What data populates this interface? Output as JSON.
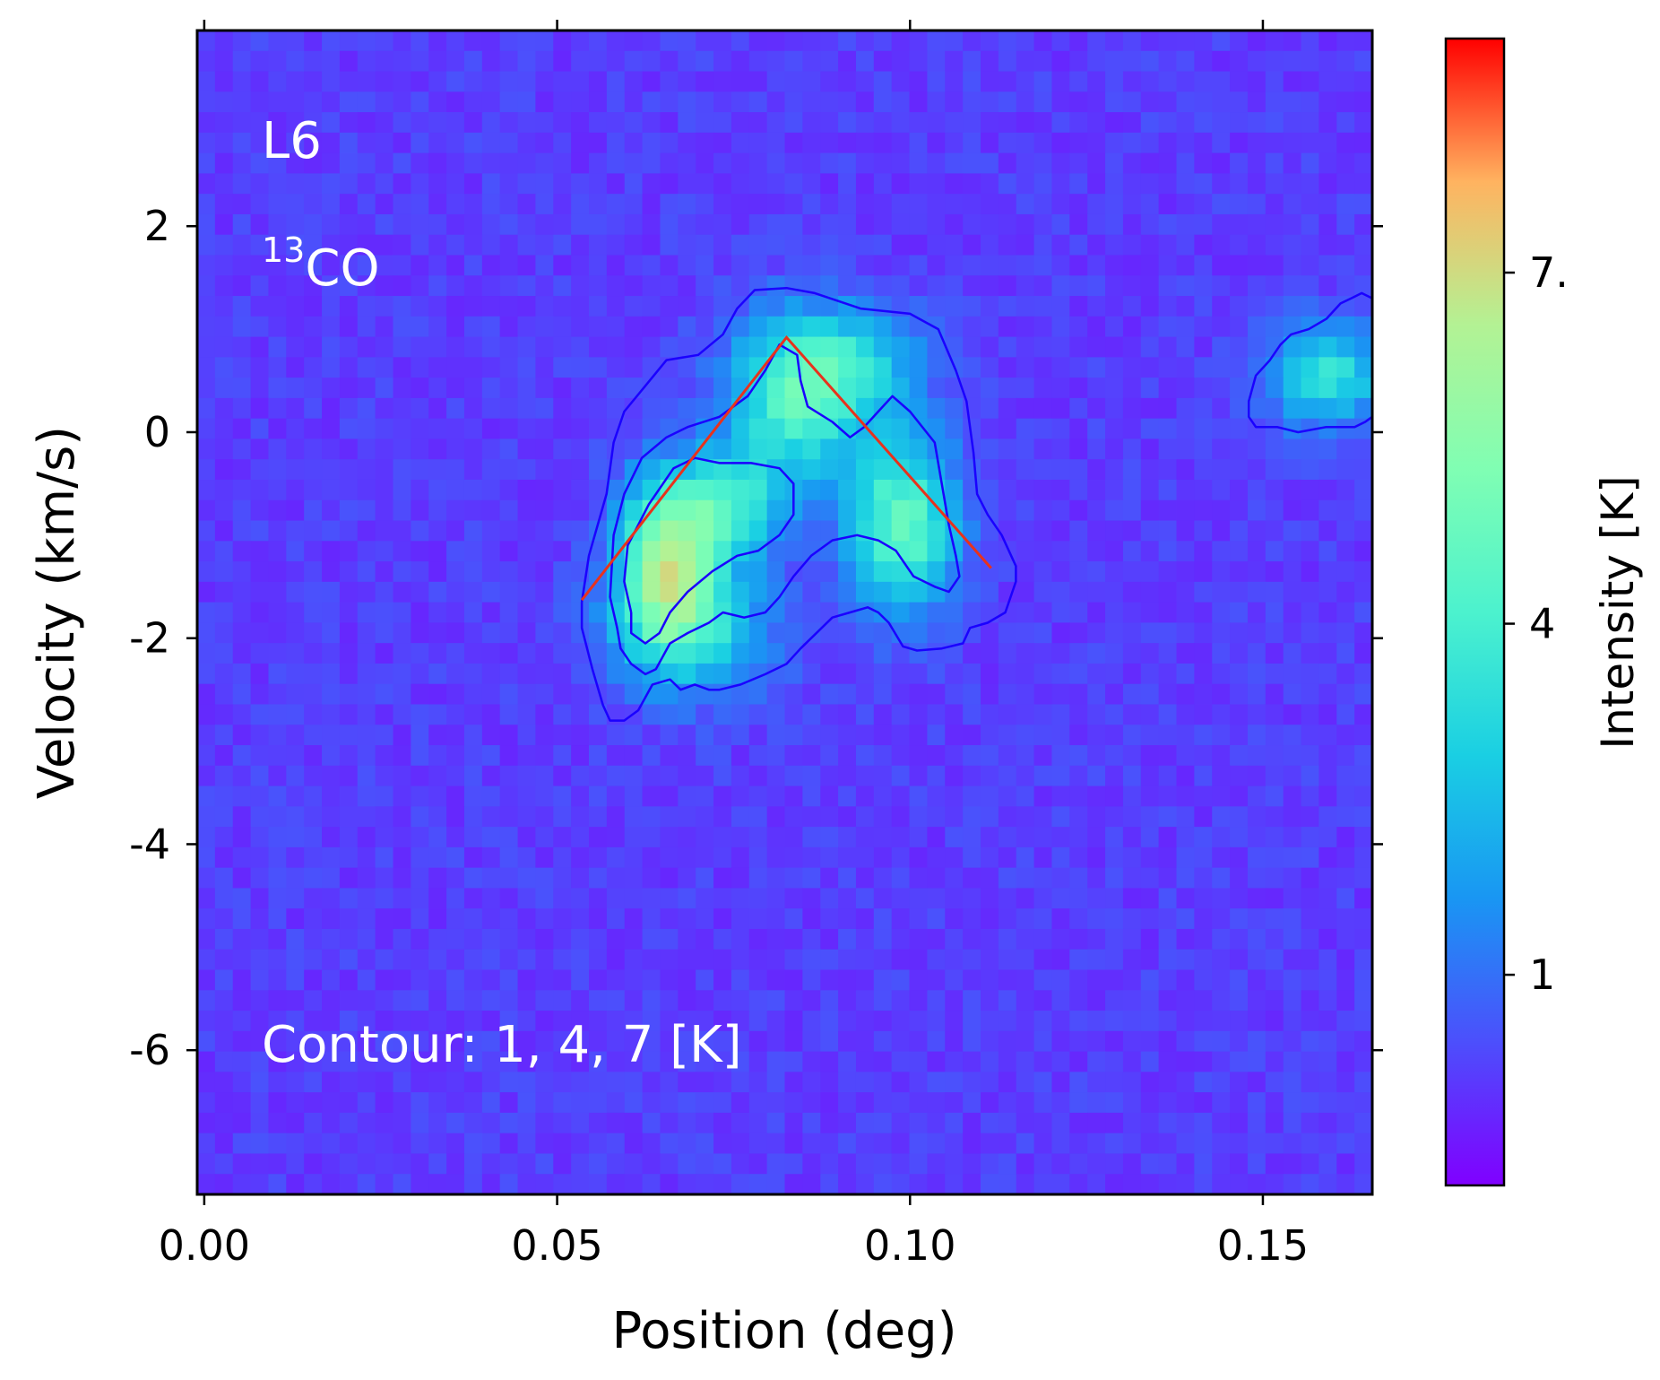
{
  "chart_data": {
    "type": "heatmap",
    "panel_label": "L6",
    "molecule": {
      "superscript": "13",
      "base": "CO"
    },
    "contour_note": "Contour: 1, 4, 7 [K]",
    "xlabel": "Position (deg)",
    "ylabel": "Velocity (km/s)",
    "xlim": [
      -0.001,
      0.1655
    ],
    "ylim": [
      -7.4,
      3.9
    ],
    "xticks": [
      0.0,
      0.05,
      0.1,
      0.15
    ],
    "xtick_labels": [
      "0.00",
      "0.05",
      "0.10",
      "0.15"
    ],
    "yticks": [
      2,
      0,
      -2,
      -4,
      -6
    ],
    "ytick_labels": [
      "2",
      "0",
      "-2",
      "-4",
      "-6"
    ],
    "colorbar": {
      "label": "Intensity [K]",
      "colormap": "rainbow",
      "range": [
        -0.8,
        9.0
      ],
      "ticks": [
        1,
        4,
        7
      ],
      "tick_labels": [
        "1",
        "4",
        "7."
      ]
    },
    "contour_levels": [
      1,
      4,
      7
    ],
    "contour_color": "#1a00ff",
    "contours": [
      {
        "level": 1,
        "points": [
          [
            0.0535,
            -1.65
          ],
          [
            0.0545,
            -1.2
          ],
          [
            0.057,
            -0.6
          ],
          [
            0.058,
            -0.1
          ],
          [
            0.0595,
            0.2
          ],
          [
            0.0625,
            0.45
          ],
          [
            0.0655,
            0.7
          ],
          [
            0.07,
            0.75
          ],
          [
            0.0735,
            0.95
          ],
          [
            0.0755,
            1.2
          ],
          [
            0.078,
            1.38
          ],
          [
            0.0825,
            1.4
          ],
          [
            0.0865,
            1.35
          ],
          [
            0.093,
            1.2
          ],
          [
            0.1,
            1.15
          ],
          [
            0.104,
            1.0
          ],
          [
            0.1065,
            0.6
          ],
          [
            0.108,
            0.3
          ],
          [
            0.109,
            -0.2
          ],
          [
            0.1095,
            -0.6
          ],
          [
            0.111,
            -0.8
          ],
          [
            0.113,
            -1.0
          ],
          [
            0.115,
            -1.3
          ],
          [
            0.115,
            -1.45
          ],
          [
            0.1135,
            -1.75
          ],
          [
            0.111,
            -1.85
          ],
          [
            0.1085,
            -1.9
          ],
          [
            0.1075,
            -2.05
          ],
          [
            0.1045,
            -2.1
          ],
          [
            0.101,
            -2.12
          ],
          [
            0.099,
            -2.08
          ],
          [
            0.097,
            -1.85
          ],
          [
            0.0955,
            -1.75
          ],
          [
            0.094,
            -1.7
          ],
          [
            0.0915,
            -1.75
          ],
          [
            0.089,
            -1.8
          ],
          [
            0.0875,
            -1.9
          ],
          [
            0.086,
            -2.0
          ],
          [
            0.0845,
            -2.1
          ],
          [
            0.0825,
            -2.25
          ],
          [
            0.0795,
            -2.35
          ],
          [
            0.076,
            -2.45
          ],
          [
            0.073,
            -2.5
          ],
          [
            0.0715,
            -2.5
          ],
          [
            0.0695,
            -2.45
          ],
          [
            0.0675,
            -2.5
          ],
          [
            0.066,
            -2.4
          ],
          [
            0.0635,
            -2.45
          ],
          [
            0.0615,
            -2.7
          ],
          [
            0.0595,
            -2.8
          ],
          [
            0.0575,
            -2.8
          ],
          [
            0.0565,
            -2.65
          ],
          [
            0.055,
            -2.3
          ],
          [
            0.0535,
            -1.9
          ],
          [
            0.0535,
            -1.65
          ]
        ]
      },
      {
        "level": 1,
        "points": [
          [
            0.1655,
            1.3
          ],
          [
            0.164,
            1.35
          ],
          [
            0.1625,
            1.3
          ],
          [
            0.161,
            1.25
          ],
          [
            0.159,
            1.1
          ],
          [
            0.1565,
            1.0
          ],
          [
            0.154,
            0.95
          ],
          [
            0.1525,
            0.85
          ],
          [
            0.151,
            0.7
          ],
          [
            0.149,
            0.55
          ],
          [
            0.148,
            0.3
          ],
          [
            0.148,
            0.15
          ],
          [
            0.149,
            0.05
          ],
          [
            0.152,
            0.05
          ],
          [
            0.155,
            0.0
          ],
          [
            0.159,
            0.05
          ],
          [
            0.163,
            0.05
          ],
          [
            0.1645,
            0.1
          ],
          [
            0.1655,
            0.15
          ]
        ]
      },
      {
        "level": 4,
        "points": [
          [
            0.0585,
            -1.9
          ],
          [
            0.0575,
            -1.6
          ],
          [
            0.058,
            -1.0
          ],
          [
            0.0595,
            -0.6
          ],
          [
            0.062,
            -0.25
          ],
          [
            0.0655,
            -0.05
          ],
          [
            0.0685,
            0.05
          ],
          [
            0.073,
            0.15
          ],
          [
            0.077,
            0.35
          ],
          [
            0.0795,
            0.6
          ],
          [
            0.0815,
            0.85
          ],
          [
            0.084,
            0.75
          ],
          [
            0.0845,
            0.5
          ],
          [
            0.0855,
            0.25
          ],
          [
            0.089,
            0.1
          ],
          [
            0.0915,
            -0.05
          ],
          [
            0.0935,
            0.05
          ],
          [
            0.0955,
            0.2
          ],
          [
            0.0975,
            0.35
          ],
          [
            0.1,
            0.2
          ],
          [
            0.1035,
            -0.1
          ],
          [
            0.1045,
            -0.5
          ],
          [
            0.1055,
            -0.9
          ],
          [
            0.1065,
            -1.2
          ],
          [
            0.107,
            -1.4
          ],
          [
            0.1055,
            -1.55
          ],
          [
            0.1035,
            -1.5
          ],
          [
            0.1005,
            -1.4
          ],
          [
            0.098,
            -1.15
          ],
          [
            0.0955,
            -1.05
          ],
          [
            0.0925,
            -1.0
          ],
          [
            0.089,
            -1.05
          ],
          [
            0.086,
            -1.2
          ],
          [
            0.0835,
            -1.4
          ],
          [
            0.0815,
            -1.6
          ],
          [
            0.0795,
            -1.75
          ],
          [
            0.0765,
            -1.8
          ],
          [
            0.0735,
            -1.75
          ],
          [
            0.0715,
            -1.85
          ],
          [
            0.0685,
            -1.95
          ],
          [
            0.066,
            -2.05
          ],
          [
            0.064,
            -2.3
          ],
          [
            0.0625,
            -2.35
          ],
          [
            0.0605,
            -2.25
          ],
          [
            0.059,
            -2.1
          ],
          [
            0.0585,
            -1.9
          ]
        ]
      },
      {
        "level": 7,
        "points": [
          [
            0.0605,
            -1.75
          ],
          [
            0.0595,
            -1.45
          ],
          [
            0.06,
            -1.1
          ],
          [
            0.063,
            -0.7
          ],
          [
            0.0665,
            -0.35
          ],
          [
            0.0695,
            -0.25
          ],
          [
            0.073,
            -0.3
          ],
          [
            0.0775,
            -0.3
          ],
          [
            0.0815,
            -0.35
          ],
          [
            0.0835,
            -0.5
          ],
          [
            0.0835,
            -0.8
          ],
          [
            0.0815,
            -1.0
          ],
          [
            0.0785,
            -1.15
          ],
          [
            0.0755,
            -1.2
          ],
          [
            0.072,
            -1.35
          ],
          [
            0.0685,
            -1.55
          ],
          [
            0.066,
            -1.75
          ],
          [
            0.0645,
            -1.95
          ],
          [
            0.0625,
            -2.05
          ],
          [
            0.0605,
            -1.95
          ],
          [
            0.0605,
            -1.75
          ]
        ]
      }
    ],
    "fit_line": {
      "color": "#e8321c",
      "points": [
        [
          0.0535,
          -1.63
        ],
        [
          0.0825,
          0.92
        ],
        [
          0.1115,
          -1.32
        ]
      ]
    },
    "blob_sources": [
      {
        "x": 0.0655,
        "y": -1.2,
        "sx": 0.0048,
        "sy": 0.55,
        "amp": 5.5
      },
      {
        "x": 0.0745,
        "y": -0.7,
        "sx": 0.0055,
        "sy": 0.35,
        "amp": 3.3
      },
      {
        "x": 0.084,
        "y": 0.35,
        "sx": 0.007,
        "sy": 0.55,
        "amp": 4.2
      },
      {
        "x": 0.099,
        "y": -0.9,
        "sx": 0.0055,
        "sy": 0.6,
        "amp": 4.5
      },
      {
        "x": 0.069,
        "y": -1.9,
        "sx": 0.008,
        "sy": 0.45,
        "amp": 3.2
      },
      {
        "x": 0.093,
        "y": 0.7,
        "sx": 0.007,
        "sy": 0.35,
        "amp": 2.0
      },
      {
        "x": 0.159,
        "y": 0.55,
        "sx": 0.006,
        "sy": 0.35,
        "amp": 3.4
      }
    ]
  }
}
